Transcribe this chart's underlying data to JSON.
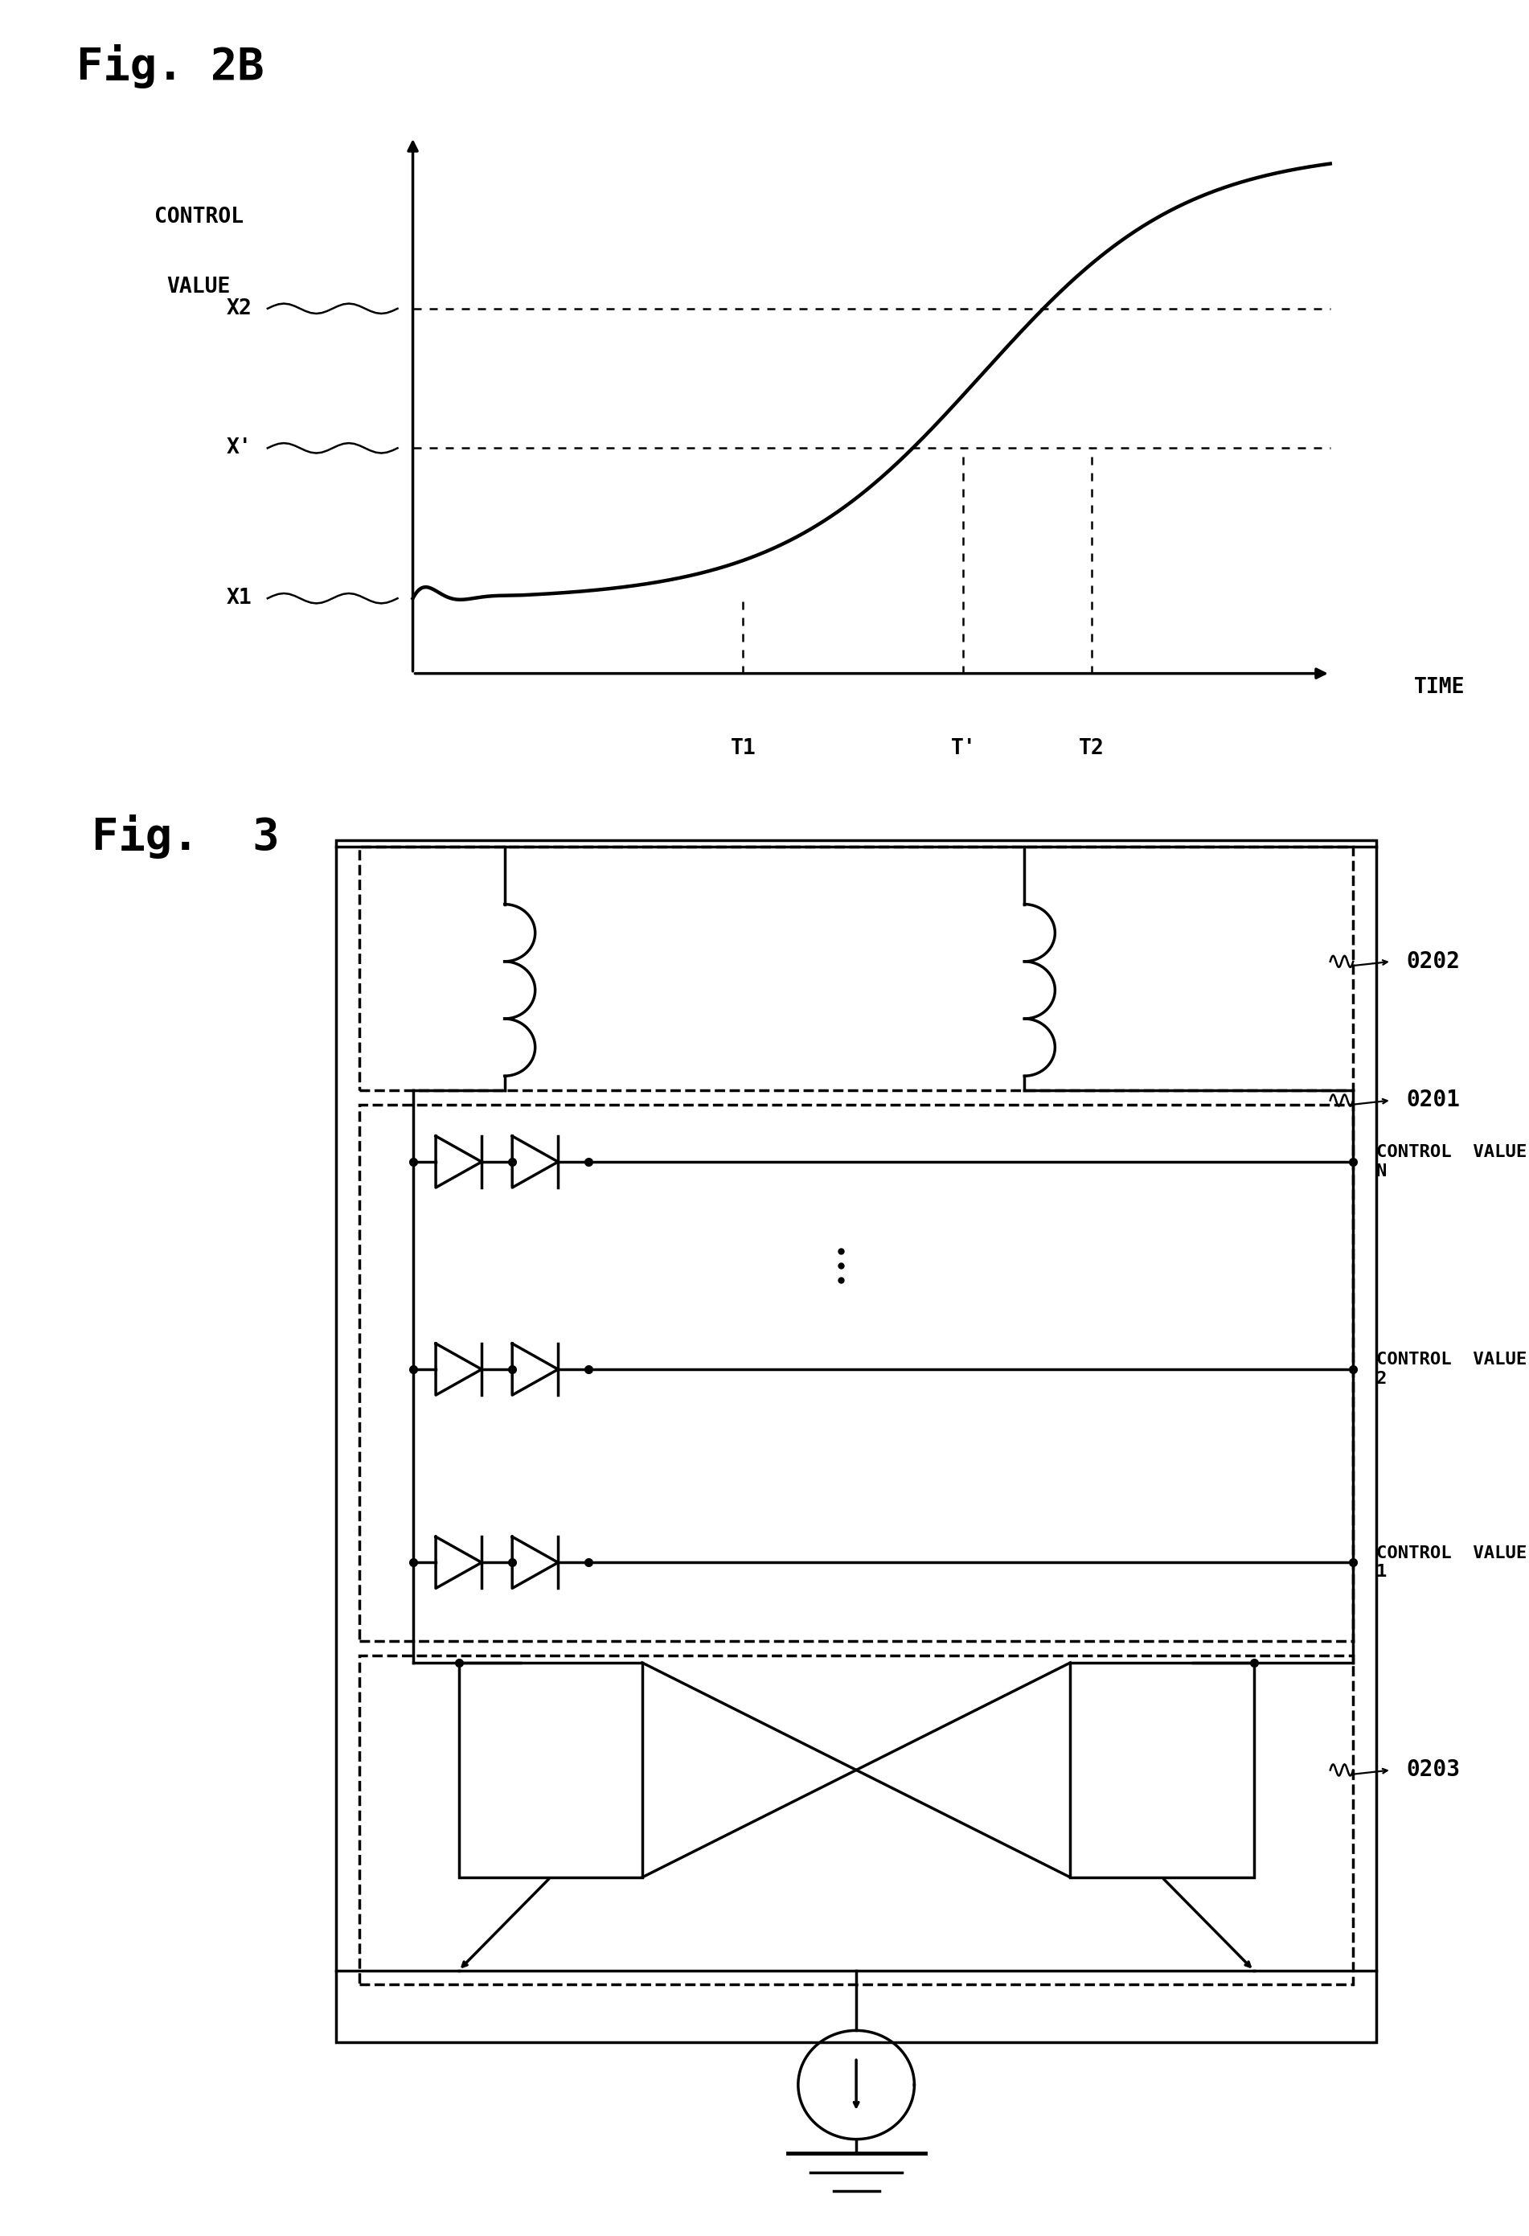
{
  "fig_label_1": "Fig. 2B",
  "fig_label_2": "Fig.  3",
  "bg_color": "#ffffff",
  "lc": "#000000",
  "graph_ylabel_line1": "CONTROL",
  "graph_ylabel_line2": "VALUE",
  "graph_xlabel": "TIME",
  "x_tick_labels": [
    "T1",
    "T'",
    "T2"
  ],
  "y_tick_labels": [
    "X1",
    "X'",
    "X2"
  ],
  "label_0202": "0202",
  "label_0201": "0201",
  "label_0203": "0203",
  "cv_labels": [
    "CONTROL  VALUE\nN",
    "CONTROL  VALUE\n2",
    "CONTROL  VALUE\n1"
  ]
}
